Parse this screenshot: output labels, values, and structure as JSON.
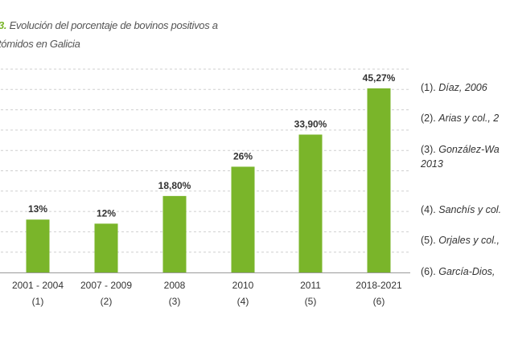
{
  "figure": {
    "number": "3.",
    "title_line1": "Evolución del porcentaje de bovinos positivos a",
    "title_line2": "tómidos en Galicia"
  },
  "chart_data": {
    "type": "bar",
    "categories": [
      "2001 - 2004",
      "2007 - 2009",
      "2008",
      "2010",
      "2011",
      "2018-2021"
    ],
    "ref_labels": [
      "(1)",
      "(2)",
      "(3)",
      "(4)",
      "(5)",
      "(6)"
    ],
    "values": [
      13,
      12,
      18.8,
      26,
      33.9,
      45.27
    ],
    "value_labels": [
      "13%",
      "12%",
      "18,80%",
      "26%",
      "33,90%",
      "45,27%"
    ],
    "ylim": [
      0,
      50
    ],
    "grid": true,
    "bar_color": "#7ab52a",
    "grid_color": "#cfcfcf"
  },
  "references": [
    {
      "num": "(1).",
      "source": "Díaz, 2006"
    },
    {
      "num": "(2).",
      "source": "Arias y col., 2"
    },
    {
      "num": "(3).",
      "source": "González-Wa",
      "source_cont": "2013"
    },
    {
      "num": "(4).",
      "source": "Sanchís y col."
    },
    {
      "num": "(5).",
      "source": "Orjales y col.,"
    },
    {
      "num": "(6).",
      "source": "García-Dios,"
    }
  ]
}
